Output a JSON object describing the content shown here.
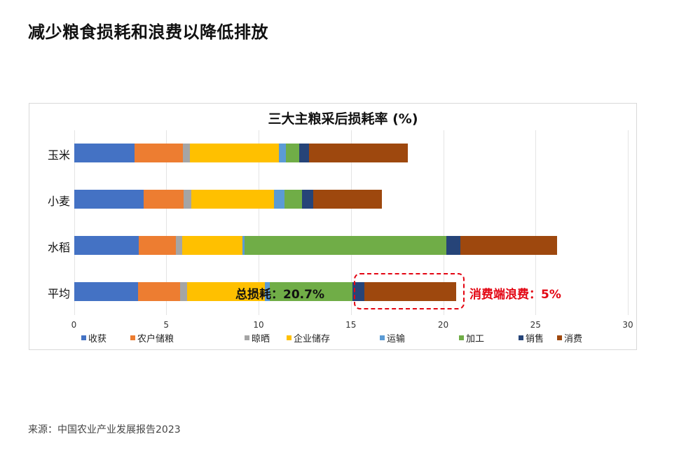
{
  "page": {
    "title": "减少粮食损耗和浪费以降低排放",
    "source": "来源：中国农业产业发展报告2023"
  },
  "annotations": {
    "total_loss": "总损耗：20.7%",
    "consumer_waste": "消费端浪费：5%",
    "highlight_color": "#e30613"
  },
  "chart_data": {
    "type": "bar",
    "orientation": "horizontal",
    "stacked": true,
    "title": "三大主粮采后损耗率 (%)",
    "xlabel": "",
    "ylabel": "",
    "xlim": [
      0,
      30
    ],
    "x_ticks": [
      0,
      5,
      10,
      15,
      20,
      25,
      30
    ],
    "grid": true,
    "legend_position": "bottom",
    "categories": [
      "玉米",
      "小麦",
      "水稻",
      "平均"
    ],
    "series": [
      {
        "name": "收获",
        "color": "#4472C4",
        "values": [
          3.29,
          3.76,
          3.5,
          3.46
        ]
      },
      {
        "name": "农户储粮",
        "color": "#ED7D31",
        "values": [
          2.6,
          2.17,
          2.01,
          2.29
        ]
      },
      {
        "name": "晾晒",
        "color": "#A5A5A5",
        "values": [
          0.39,
          0.41,
          0.34,
          0.39
        ]
      },
      {
        "name": "企业储存",
        "color": "#FFC000",
        "values": [
          4.82,
          4.49,
          3.26,
          4.19
        ]
      },
      {
        "name": "运输",
        "color": "#5B9BD5",
        "values": [
          0.37,
          0.57,
          0.13,
          0.28
        ]
      },
      {
        "name": "加工",
        "color": "#70AD47",
        "values": [
          0.72,
          0.95,
          10.94,
          4.49
        ]
      },
      {
        "name": "销售",
        "color": "#264478",
        "values": [
          0.54,
          0.62,
          0.76,
          0.63
        ]
      },
      {
        "name": "消费",
        "color": "#9E480E",
        "values": [
          5.34,
          3.7,
          5.22,
          4.96
        ]
      }
    ],
    "annotations": [
      "总损耗：20.7%",
      "消费端浪费：5%"
    ]
  }
}
